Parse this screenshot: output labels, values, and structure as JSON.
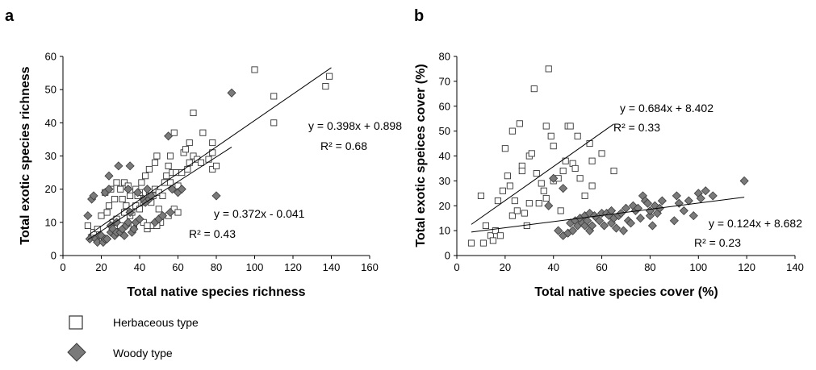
{
  "chart_data": [
    {
      "panel": "a",
      "type": "scatter",
      "xlabel": "Total native species richness",
      "ylabel": "Total exotic species richness",
      "xlim": [
        0,
        160
      ],
      "ylim": [
        0,
        60
      ],
      "xticks": [
        0,
        20,
        40,
        60,
        80,
        100,
        120,
        140,
        160
      ],
      "yticks": [
        0,
        10,
        20,
        30,
        40,
        50,
        60
      ],
      "grid": false,
      "series": [
        {
          "name": "Herbaceous type",
          "marker": "square",
          "points": [
            [
              13,
              9
            ],
            [
              16,
              7
            ],
            [
              18,
              8
            ],
            [
              20,
              12
            ],
            [
              22,
              19
            ],
            [
              23,
              13
            ],
            [
              24,
              15
            ],
            [
              25,
              20
            ],
            [
              26,
              10
            ],
            [
              27,
              17
            ],
            [
              28,
              22
            ],
            [
              28,
              11
            ],
            [
              30,
              20
            ],
            [
              30,
              9
            ],
            [
              31,
              17
            ],
            [
              32,
              13
            ],
            [
              32,
              22
            ],
            [
              33,
              15
            ],
            [
              34,
              21
            ],
            [
              35,
              18
            ],
            [
              35,
              12
            ],
            [
              36,
              13
            ],
            [
              37,
              9
            ],
            [
              38,
              20
            ],
            [
              38,
              15
            ],
            [
              39,
              18
            ],
            [
              40,
              14
            ],
            [
              40,
              19
            ],
            [
              41,
              22
            ],
            [
              42,
              10
            ],
            [
              42,
              16
            ],
            [
              43,
              24
            ],
            [
              44,
              8
            ],
            [
              45,
              26
            ],
            [
              45,
              18
            ],
            [
              46,
              16
            ],
            [
              47,
              18
            ],
            [
              48,
              28
            ],
            [
              48,
              20
            ],
            [
              49,
              30
            ],
            [
              50,
              19
            ],
            [
              50,
              14
            ],
            [
              51,
              10
            ],
            [
              52,
              18
            ],
            [
              53,
              22
            ],
            [
              54,
              24
            ],
            [
              55,
              12
            ],
            [
              55,
              27
            ],
            [
              56,
              30
            ],
            [
              56,
              22
            ],
            [
              57,
              25
            ],
            [
              58,
              37
            ],
            [
              58,
              14
            ],
            [
              59,
              25
            ],
            [
              60,
              21
            ],
            [
              60,
              13
            ],
            [
              62,
              25
            ],
            [
              63,
              31
            ],
            [
              64,
              32
            ],
            [
              65,
              26
            ],
            [
              66,
              28
            ],
            [
              66,
              34
            ],
            [
              68,
              30
            ],
            [
              68,
              43
            ],
            [
              70,
              29
            ],
            [
              72,
              28
            ],
            [
              73,
              37
            ],
            [
              76,
              29
            ],
            [
              78,
              34
            ],
            [
              78,
              26
            ],
            [
              78,
              31
            ],
            [
              80,
              27
            ],
            [
              100,
              56
            ],
            [
              110,
              48
            ],
            [
              110,
              40
            ],
            [
              137,
              51
            ],
            [
              139,
              54
            ],
            [
              46,
              9
            ],
            [
              49,
              9
            ],
            [
              44,
              9
            ]
          ]
        },
        {
          "name": "Woody type",
          "marker": "diamond",
          "points": [
            [
              13,
              12
            ],
            [
              14,
              5
            ],
            [
              15,
              17
            ],
            [
              16,
              18
            ],
            [
              17,
              5
            ],
            [
              18,
              4
            ],
            [
              19,
              6
            ],
            [
              20,
              6
            ],
            [
              21,
              4
            ],
            [
              22,
              5
            ],
            [
              22,
              19
            ],
            [
              23,
              5
            ],
            [
              24,
              24
            ],
            [
              24,
              20
            ],
            [
              25,
              7
            ],
            [
              25,
              9
            ],
            [
              26,
              8
            ],
            [
              27,
              6
            ],
            [
              28,
              7
            ],
            [
              28,
              10
            ],
            [
              29,
              27
            ],
            [
              30,
              7
            ],
            [
              31,
              8
            ],
            [
              32,
              6
            ],
            [
              33,
              9
            ],
            [
              34,
              10
            ],
            [
              34,
              20
            ],
            [
              35,
              27
            ],
            [
              35,
              13
            ],
            [
              36,
              7
            ],
            [
              37,
              8
            ],
            [
              38,
              10
            ],
            [
              39,
              19
            ],
            [
              40,
              11
            ],
            [
              42,
              17
            ],
            [
              43,
              16
            ],
            [
              44,
              20
            ],
            [
              45,
              17
            ],
            [
              46,
              18
            ],
            [
              48,
              10
            ],
            [
              50,
              11
            ],
            [
              52,
              12
            ],
            [
              55,
              36
            ],
            [
              56,
              13
            ],
            [
              57,
              20
            ],
            [
              60,
              19
            ],
            [
              62,
              20
            ],
            [
              80,
              18
            ],
            [
              88,
              49
            ]
          ]
        }
      ],
      "trendlines": [
        {
          "series": "Herbaceous type",
          "slope": 0.398,
          "intercept": 0.898,
          "x_range": [
            13,
            140
          ],
          "equation": "y = 0.398x + 0.898",
          "r2": "R² = 0.68"
        },
        {
          "series": "Woody type",
          "slope": 0.372,
          "intercept": -0.041,
          "x_range": [
            13,
            88
          ],
          "equation": "y = 0.372x - 0.041",
          "r2": "R² = 0.43"
        }
      ]
    },
    {
      "panel": "b",
      "type": "scatter",
      "xlabel": "Total native species cover (%)",
      "ylabel": "Total exotic speices cover (%)",
      "xlim": [
        0,
        140
      ],
      "ylim": [
        0,
        80
      ],
      "xticks": [
        0,
        20,
        40,
        60,
        80,
        100,
        120,
        140
      ],
      "yticks": [
        0,
        10,
        20,
        30,
        40,
        50,
        60,
        70,
        80
      ],
      "grid": false,
      "series": [
        {
          "name": "Herbaceous type",
          "marker": "square",
          "points": [
            [
              6,
              5
            ],
            [
              10,
              24
            ],
            [
              11,
              5
            ],
            [
              12,
              12
            ],
            [
              14,
              8
            ],
            [
              15,
              6
            ],
            [
              16,
              10
            ],
            [
              17,
              22
            ],
            [
              18,
              8
            ],
            [
              19,
              26
            ],
            [
              20,
              43
            ],
            [
              21,
              32
            ],
            [
              22,
              28
            ],
            [
              23,
              16
            ],
            [
              23,
              50
            ],
            [
              24,
              22
            ],
            [
              25,
              18
            ],
            [
              26,
              53
            ],
            [
              27,
              36
            ],
            [
              27,
              34
            ],
            [
              28,
              17
            ],
            [
              29,
              12
            ],
            [
              30,
              21
            ],
            [
              30,
              40
            ],
            [
              31,
              41
            ],
            [
              32,
              67
            ],
            [
              33,
              33
            ],
            [
              34,
              21
            ],
            [
              35,
              29
            ],
            [
              36,
              26
            ],
            [
              37,
              23
            ],
            [
              37,
              52
            ],
            [
              38,
              75
            ],
            [
              39,
              48
            ],
            [
              40,
              30
            ],
            [
              40,
              44
            ],
            [
              42,
              31
            ],
            [
              43,
              18
            ],
            [
              44,
              34
            ],
            [
              45,
              38
            ],
            [
              46,
              52
            ],
            [
              47,
              52
            ],
            [
              48,
              37
            ],
            [
              49,
              35
            ],
            [
              50,
              48
            ],
            [
              51,
              31
            ],
            [
              53,
              24
            ],
            [
              55,
              45
            ],
            [
              56,
              38
            ],
            [
              56,
              28
            ],
            [
              60,
              41
            ],
            [
              65,
              34
            ]
          ]
        },
        {
          "name": "Woody type",
          "marker": "diamond",
          "points": [
            [
              38,
              20
            ],
            [
              40,
              31
            ],
            [
              42,
              10
            ],
            [
              44,
              8
            ],
            [
              44,
              27
            ],
            [
              46,
              9
            ],
            [
              47,
              13
            ],
            [
              48,
              10
            ],
            [
              49,
              14
            ],
            [
              50,
              12
            ],
            [
              51,
              15
            ],
            [
              52,
              13
            ],
            [
              53,
              12
            ],
            [
              53,
              16
            ],
            [
              54,
              14
            ],
            [
              55,
              10
            ],
            [
              55,
              17
            ],
            [
              56,
              12
            ],
            [
              57,
              16
            ],
            [
              58,
              15
            ],
            [
              59,
              14
            ],
            [
              60,
              17
            ],
            [
              61,
              12
            ],
            [
              62,
              17
            ],
            [
              63,
              16
            ],
            [
              64,
              13
            ],
            [
              64,
              18
            ],
            [
              65,
              15
            ],
            [
              66,
              11
            ],
            [
              67,
              16
            ],
            [
              68,
              17
            ],
            [
              69,
              10
            ],
            [
              70,
              19
            ],
            [
              71,
              14
            ],
            [
              72,
              13
            ],
            [
              73,
              20
            ],
            [
              74,
              18
            ],
            [
              75,
              19
            ],
            [
              76,
              15
            ],
            [
              77,
              24
            ],
            [
              78,
              22
            ],
            [
              79,
              21
            ],
            [
              80,
              16
            ],
            [
              80,
              18
            ],
            [
              81,
              12
            ],
            [
              82,
              20
            ],
            [
              83,
              17
            ],
            [
              84,
              19
            ],
            [
              85,
              22
            ],
            [
              90,
              14
            ],
            [
              91,
              24
            ],
            [
              92,
              21
            ],
            [
              94,
              18
            ],
            [
              96,
              22
            ],
            [
              98,
              16
            ],
            [
              100,
              25
            ],
            [
              101,
              23
            ],
            [
              103,
              26
            ],
            [
              106,
              24
            ],
            [
              119,
              30
            ]
          ]
        }
      ],
      "trendlines": [
        {
          "series": "Herbaceous type",
          "slope": 0.684,
          "intercept": 8.402,
          "x_range": [
            6,
            65
          ],
          "equation": "y = 0.684x + 8.402",
          "r2": "R² = 0.33"
        },
        {
          "series": "Woody type",
          "slope": 0.124,
          "intercept": 8.682,
          "x_range": [
            6,
            119
          ],
          "equation": "y = 0.124x + 8.682",
          "r2": "R² = 0.23"
        }
      ]
    }
  ],
  "legend": {
    "placement": "bottom-left",
    "items": [
      {
        "label": "Herbaceous type",
        "marker": "square"
      },
      {
        "label": "Woody type",
        "marker": "diamond"
      }
    ]
  },
  "colors": {
    "herbaceous_fill": "#ffffff",
    "herbaceous_stroke": "#333333",
    "woody_fill": "#7a7a7a",
    "woody_stroke": "#3a3a3a",
    "axis": "#000000",
    "trendline": "#000000"
  }
}
